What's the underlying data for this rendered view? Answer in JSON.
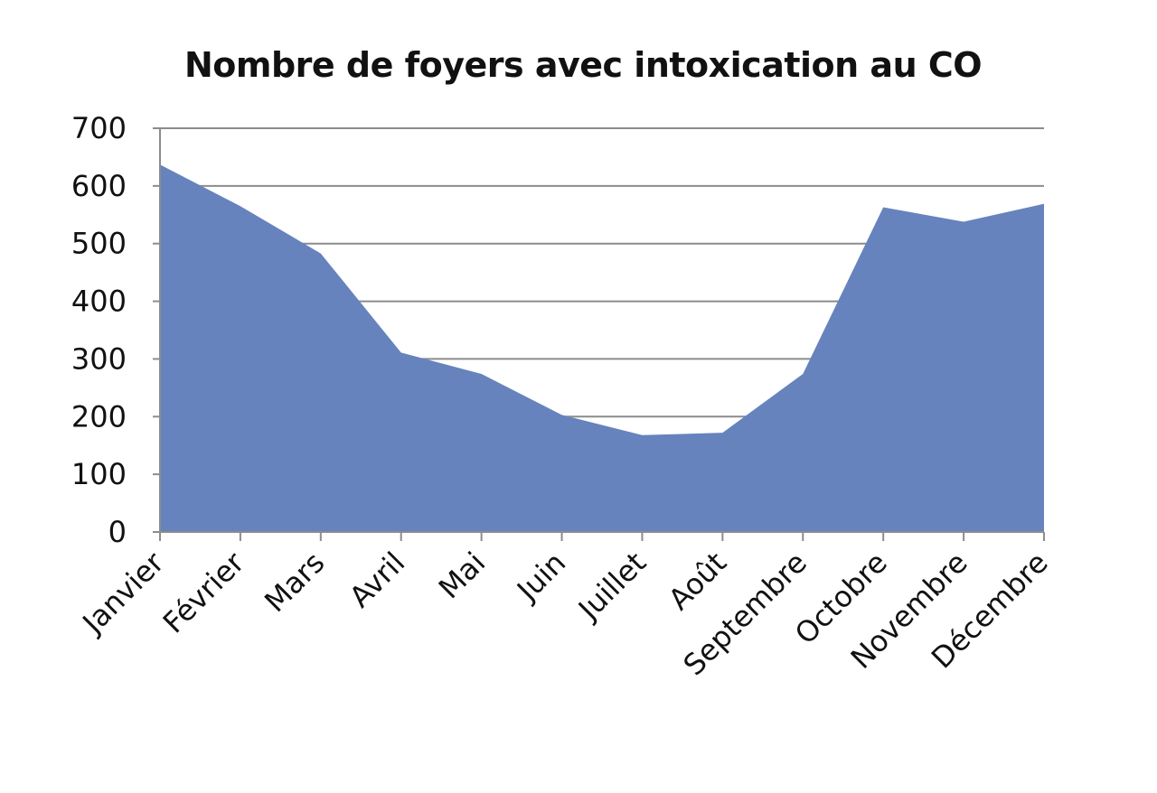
{
  "chart_data": {
    "type": "area",
    "title": "Nombre de foyers avec intoxication au CO",
    "xlabel": "",
    "ylabel": "",
    "categories": [
      "Janvier",
      "Février",
      "Mars",
      "Avril",
      "Mai",
      "Juin",
      "Juillet",
      "Août",
      "Septembre",
      "Octobre",
      "Novembre",
      "Décembre"
    ],
    "values": [
      637,
      565,
      483,
      311,
      274,
      203,
      168,
      172,
      274,
      563,
      538,
      569
    ],
    "ylim": [
      0,
      700
    ],
    "yticks": [
      0,
      100,
      200,
      300,
      400,
      500,
      600,
      700
    ],
    "grid": "horizontal",
    "legend": "none",
    "fill_color": "#6683bd",
    "grid_color": "#8c8c8c"
  }
}
